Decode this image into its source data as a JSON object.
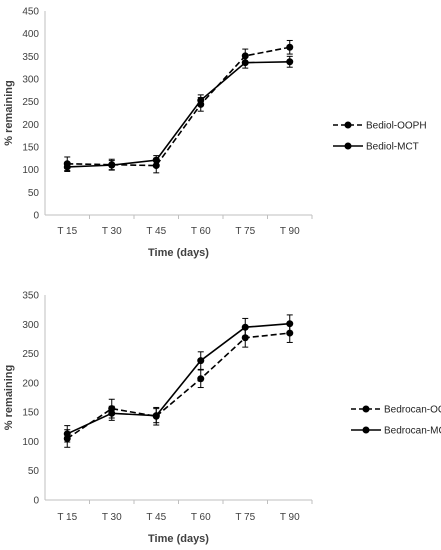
{
  "chart_data": [
    {
      "type": "line",
      "title": "",
      "xlabel": "Time (days)",
      "ylabel": "% remaining",
      "ylim": [
        0,
        450
      ],
      "ytick_step": 50,
      "categories": [
        "T 15",
        "T 30",
        "T 45",
        "T 60",
        "T 75",
        "T 90"
      ],
      "series": [
        {
          "name": "Bediol-OOPH",
          "style": "dashed",
          "color": "#000000",
          "values": [
            113,
            111,
            109,
            244,
            351,
            370
          ],
          "errors": [
            15,
            12,
            16,
            15,
            15,
            15
          ]
        },
        {
          "name": "Bediol-MCT",
          "style": "solid",
          "color": "#000000",
          "values": [
            106,
            110,
            121,
            253,
            336,
            338
          ],
          "errors": [
            10,
            10,
            10,
            12,
            12,
            12
          ]
        }
      ],
      "legend": "right",
      "grid": false
    },
    {
      "type": "line",
      "title": "",
      "xlabel": "Time (days)",
      "ylabel": "% remaining",
      "ylim": [
        0,
        350
      ],
      "ytick_step": 50,
      "categories": [
        "T 15",
        "T 30",
        "T 45",
        "T 60",
        "T 75",
        "T 90"
      ],
      "series": [
        {
          "name": "Bedrocan-OOPH",
          "style": "dashed",
          "color": "#000000",
          "values": [
            105,
            156,
            143,
            207,
            277,
            285
          ],
          "errors": [
            15,
            16,
            15,
            15,
            16,
            16
          ]
        },
        {
          "name": "Bedrocan-MCT",
          "style": "solid",
          "color": "#000000",
          "values": [
            113,
            148,
            144,
            238,
            295,
            301
          ],
          "errors": [
            14,
            12,
            12,
            15,
            15,
            15
          ]
        }
      ],
      "legend": "right",
      "grid": false
    }
  ]
}
